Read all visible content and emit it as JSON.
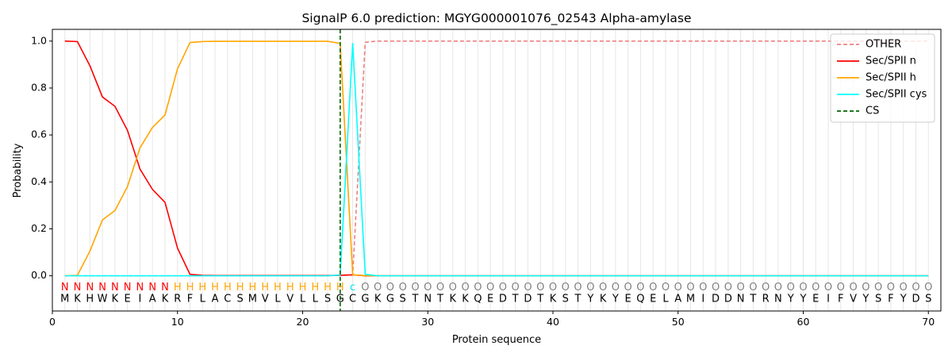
{
  "chart_data": {
    "type": "line",
    "title": "SignalP 6.0 prediction: MGYG000001076_02543 Alpha-amylase",
    "xlabel": "Protein sequence",
    "ylabel": "Probability",
    "xlim": [
      0,
      71
    ],
    "ylim": [
      -0.15,
      1.05
    ],
    "xticks": [
      0,
      10,
      20,
      30,
      40,
      50,
      60,
      70
    ],
    "yticks": [
      0.0,
      0.2,
      0.4,
      0.6,
      0.8,
      1.0
    ],
    "ytick_labels": [
      "0.0",
      "0.2",
      "0.4",
      "0.6",
      "0.8",
      "1.0"
    ],
    "x": [
      1,
      2,
      3,
      4,
      5,
      6,
      7,
      8,
      9,
      10,
      11,
      12,
      13,
      14,
      15,
      16,
      17,
      18,
      19,
      20,
      21,
      22,
      23,
      24,
      25,
      26,
      27,
      28,
      29,
      30,
      31,
      32,
      33,
      34,
      35,
      36,
      37,
      38,
      39,
      40,
      41,
      42,
      43,
      44,
      45,
      46,
      47,
      48,
      49,
      50,
      51,
      52,
      53,
      54,
      55,
      56,
      57,
      58,
      59,
      60,
      61,
      62,
      63,
      64,
      65,
      66,
      67,
      68,
      69,
      70
    ],
    "sequence": [
      "M",
      "K",
      "H",
      "W",
      "K",
      "E",
      "I",
      "A",
      "K",
      "R",
      "F",
      "L",
      "A",
      "C",
      "S",
      "M",
      "V",
      "L",
      "V",
      "L",
      "L",
      "S",
      "G",
      "C",
      "G",
      "K",
      "G",
      "S",
      "T",
      "N",
      "T",
      "K",
      "K",
      "Q",
      "E",
      "D",
      "T",
      "D",
      "T",
      "K",
      "S",
      "T",
      "Y",
      "K",
      "Y",
      "E",
      "Q",
      "E",
      "L",
      "A",
      "M",
      "I",
      "D",
      "D",
      "N",
      "T",
      "R",
      "N",
      "Y",
      "Y",
      "E",
      "I",
      "F",
      "V",
      "Y",
      "S",
      "F",
      "Y",
      "D",
      "S"
    ],
    "labels": [
      "N",
      "N",
      "N",
      "N",
      "N",
      "N",
      "N",
      "N",
      "N",
      "H",
      "H",
      "H",
      "H",
      "H",
      "H",
      "H",
      "H",
      "H",
      "H",
      "H",
      "H",
      "H",
      "H",
      "C",
      "O",
      "O",
      "O",
      "O",
      "O",
      "O",
      "O",
      "O",
      "O",
      "O",
      "O",
      "O",
      "O",
      "O",
      "O",
      "O",
      "O",
      "O",
      "O",
      "O",
      "O",
      "O",
      "O",
      "O",
      "O",
      "O",
      "O",
      "O",
      "O",
      "O",
      "O",
      "O",
      "O",
      "O",
      "O",
      "O",
      "O",
      "O",
      "O",
      "O",
      "O",
      "O",
      "O",
      "O",
      "O",
      "O"
    ],
    "label_colors": {
      "N": "#ff0000",
      "H": "#ffa500",
      "C": "#00e5ee",
      "O": "#808080"
    },
    "series": [
      {
        "name": "OTHER",
        "color": "#f08080",
        "dash": "dashed",
        "values": [
          0,
          0,
          0,
          0,
          0,
          0,
          0,
          0,
          0,
          0,
          0,
          0,
          0,
          0,
          0,
          0,
          0,
          0,
          0,
          0,
          0,
          0,
          0.003,
          0.004,
          0.995,
          1,
          1,
          1,
          1,
          1,
          1,
          1,
          1,
          1,
          1,
          1,
          1,
          1,
          1,
          1,
          1,
          1,
          1,
          1,
          1,
          1,
          1,
          1,
          1,
          1,
          1,
          1,
          1,
          1,
          1,
          1,
          1,
          1,
          1,
          1,
          1,
          1,
          1,
          1,
          1,
          1,
          1,
          1,
          1,
          1
        ]
      },
      {
        "name": "Sec/SPII n",
        "color": "#ff0000",
        "dash": "solid",
        "values": [
          1.0,
          0.998,
          0.895,
          0.762,
          0.722,
          0.62,
          0.455,
          0.368,
          0.313,
          0.118,
          0.006,
          0.002,
          0.001,
          0.001,
          0.001,
          0.001,
          0.001,
          0.001,
          0.001,
          0.001,
          0.001,
          0.001,
          0.002,
          0.004,
          0,
          0,
          0,
          0,
          0,
          0,
          0,
          0,
          0,
          0,
          0,
          0,
          0,
          0,
          0,
          0,
          0,
          0,
          0,
          0,
          0,
          0,
          0,
          0,
          0,
          0,
          0,
          0,
          0,
          0,
          0,
          0,
          0,
          0,
          0,
          0,
          0,
          0,
          0,
          0,
          0,
          0,
          0,
          0,
          0,
          0
        ]
      },
      {
        "name": "Sec/SPII h",
        "color": "#ffa500",
        "dash": "solid",
        "values": [
          0,
          0.002,
          0.105,
          0.238,
          0.278,
          0.38,
          0.545,
          0.632,
          0.685,
          0.882,
          0.994,
          0.998,
          0.999,
          0.999,
          0.999,
          0.999,
          0.999,
          0.999,
          0.999,
          0.999,
          0.999,
          0.999,
          0.99,
          0.004,
          0.001,
          0,
          0,
          0,
          0,
          0,
          0,
          0,
          0,
          0,
          0,
          0,
          0,
          0,
          0,
          0,
          0,
          0,
          0,
          0,
          0,
          0,
          0,
          0,
          0,
          0,
          0,
          0,
          0,
          0,
          0,
          0,
          0,
          0,
          0,
          0,
          0,
          0,
          0,
          0,
          0,
          0,
          0,
          0,
          0,
          0
        ]
      },
      {
        "name": "Sec/SPII cys",
        "color": "#00ffff",
        "dash": "solid",
        "values": [
          0,
          0,
          0,
          0,
          0,
          0,
          0,
          0,
          0,
          0,
          0,
          0,
          0,
          0,
          0,
          0,
          0,
          0,
          0,
          0,
          0,
          0,
          0.003,
          0.99,
          0.006,
          0,
          0,
          0,
          0,
          0,
          0,
          0,
          0,
          0,
          0,
          0,
          0,
          0,
          0,
          0,
          0,
          0,
          0,
          0,
          0,
          0,
          0,
          0,
          0,
          0,
          0,
          0,
          0,
          0,
          0,
          0,
          0,
          0,
          0,
          0,
          0,
          0,
          0,
          0,
          0,
          0,
          0,
          0,
          0,
          0
        ]
      }
    ],
    "cs": {
      "name": "CS",
      "x": 23,
      "color": "#006400"
    },
    "legend": {
      "position": "top-right"
    },
    "grid": "vertical"
  }
}
